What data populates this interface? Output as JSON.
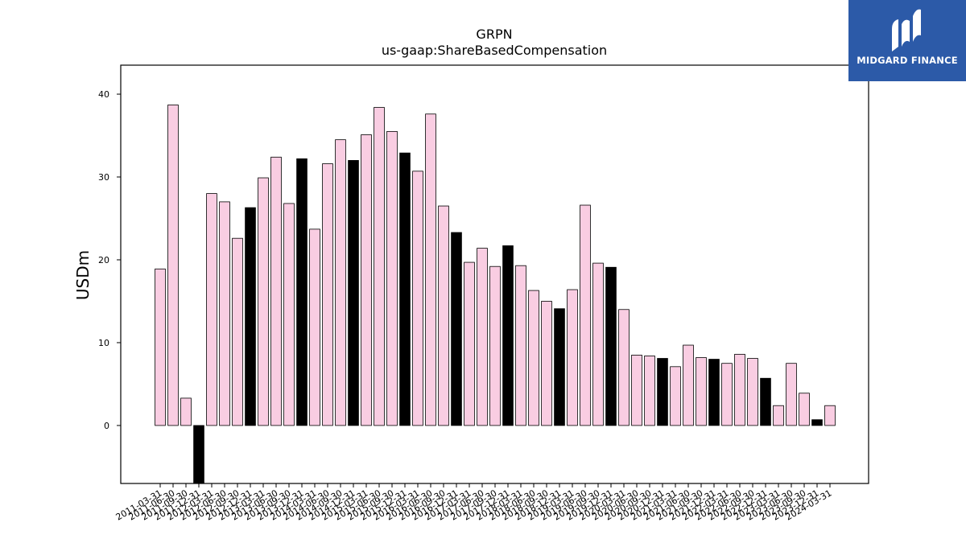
{
  "chart_data": {
    "type": "bar",
    "title": "GRPN",
    "subtitle": "us-gaap:ShareBasedCompensation",
    "ylabel": "USDm",
    "xlabel": "",
    "ylim": [
      -7,
      43.5
    ],
    "yticks": [
      0,
      10,
      20,
      30,
      40
    ],
    "grid": false,
    "colors": {
      "bar": "#f9cde2",
      "highlight": "#000000",
      "edge": "#000000"
    },
    "categories": [
      "2011-03-31",
      "2011-06-30",
      "2011-09-30",
      "2011-12-31",
      "2012-03-31",
      "2012-06-30",
      "2012-09-30",
      "2012-12-31",
      "2013-03-31",
      "2013-06-30",
      "2013-09-30",
      "2013-12-31",
      "2014-03-31",
      "2014-06-30",
      "2014-09-30",
      "2014-12-31",
      "2015-03-31",
      "2015-06-30",
      "2015-09-30",
      "2015-12-31",
      "2016-03-31",
      "2016-06-30",
      "2016-09-30",
      "2016-12-31",
      "2017-03-31",
      "2017-06-30",
      "2017-09-30",
      "2017-12-31",
      "2018-03-31",
      "2018-06-30",
      "2018-09-30",
      "2018-12-31",
      "2019-03-31",
      "2019-06-30",
      "2019-09-30",
      "2019-12-31",
      "2020-03-31",
      "2020-06-30",
      "2020-09-30",
      "2020-12-31",
      "2021-03-31",
      "2021-06-30",
      "2021-09-30",
      "2021-12-31",
      "2022-03-31",
      "2022-06-30",
      "2022-09-30",
      "2022-12-31",
      "2023-03-31",
      "2023-06-30",
      "2023-09-30",
      "2023-12-31",
      "2024-03-31"
    ],
    "values": [
      18.9,
      38.7,
      3.3,
      -7.2,
      28.0,
      27.0,
      22.6,
      26.3,
      29.9,
      32.4,
      26.8,
      32.2,
      23.7,
      31.6,
      34.5,
      32.0,
      35.1,
      38.4,
      35.5,
      32.9,
      30.7,
      37.6,
      26.5,
      23.3,
      19.7,
      21.4,
      19.2,
      21.7,
      19.3,
      16.3,
      15.0,
      14.1,
      16.4,
      26.6,
      19.6,
      19.1,
      14.0,
      8.5,
      8.4,
      8.1,
      7.1,
      9.7,
      8.2,
      8.0,
      7.5,
      8.6,
      8.1,
      5.7,
      2.4,
      7.5,
      3.9,
      0.7,
      2.4
    ],
    "highlight_categories": [
      "2011-12-31",
      "2012-12-31",
      "2013-12-31",
      "2014-12-31",
      "2015-12-31",
      "2016-12-31",
      "2017-12-31",
      "2018-12-31",
      "2019-12-31",
      "2020-12-31",
      "2021-12-31",
      "2022-12-31",
      "2023-12-31"
    ]
  },
  "logo": {
    "text": "MIDGARD FINANCE",
    "icon": "midgard-logo-icon",
    "background": "#2c5aa8"
  }
}
